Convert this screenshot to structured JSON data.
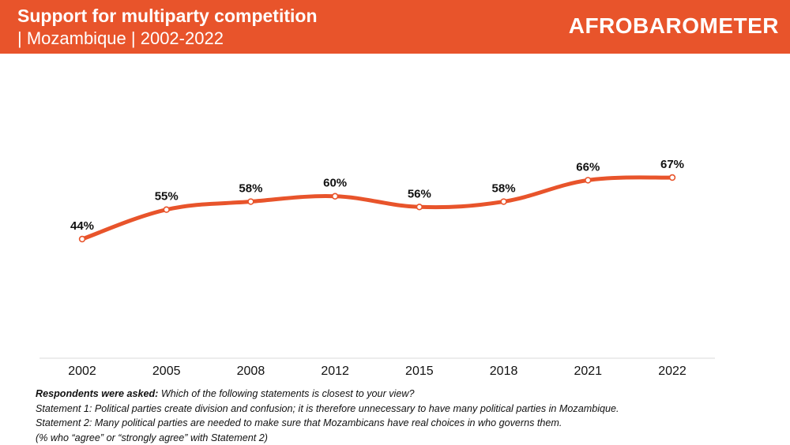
{
  "header": {
    "title": "Support for multiparty competition",
    "subtitle": "| Mozambique | 2002-2022",
    "logo": "AFROBAROMETER"
  },
  "colors": {
    "accent": "#e8542b",
    "line": "#e8542b",
    "text": "#111111",
    "axis": "#d9d9d9"
  },
  "chart_data": {
    "type": "line",
    "title": "Support for multiparty competition",
    "subtitle": "| Mozambique | 2002-2022",
    "categories": [
      "2002",
      "2005",
      "2008",
      "2012",
      "2015",
      "2018",
      "2021",
      "2022"
    ],
    "series": [
      {
        "name": "% who agree or strongly agree with Statement 2",
        "values": [
          44,
          55,
          58,
          60,
          56,
          58,
          66,
          67
        ],
        "labels": [
          "44%",
          "55%",
          "58%",
          "60%",
          "56%",
          "58%",
          "66%",
          "67%"
        ]
      }
    ],
    "xlabel": "",
    "ylabel": "",
    "ylim": [
      0,
      100
    ],
    "grid": false,
    "legend": "none"
  },
  "notes": {
    "question_label": "Respondents were asked:",
    "question_text": "Which of the following statements is closest to your view?",
    "statement1": "Statement 1: Political parties create division and confusion; it is therefore unnecessary to have many political parties in Mozambique.",
    "statement2": "Statement 2: Many political parties are needed to make sure that Mozambicans have real choices in who governs them.",
    "footnote": "(% who “agree” or “strongly agree” with Statement 2)"
  }
}
